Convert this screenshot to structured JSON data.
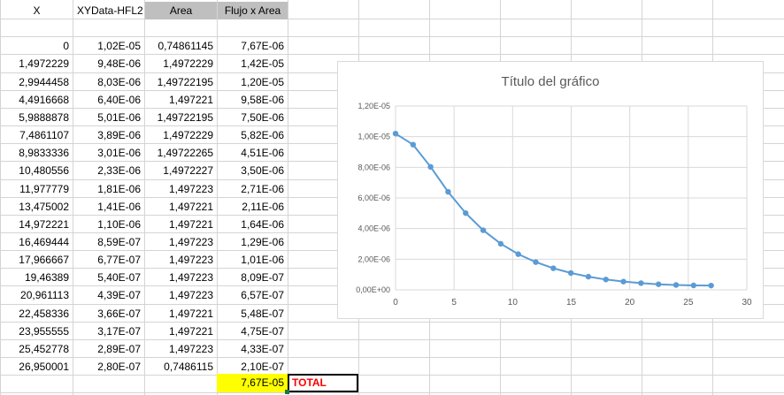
{
  "sheet": {
    "headers": [
      "X",
      "XYData-HFL2",
      "Area",
      "Flujo x Area"
    ],
    "rows": [
      [
        "0",
        "1,02E-05",
        "0,74861145",
        "7,67E-06"
      ],
      [
        "1,4972229",
        "9,48E-06",
        "1,4972229",
        "1,42E-05"
      ],
      [
        "2,9944458",
        "8,03E-06",
        "1,49722195",
        "1,20E-05"
      ],
      [
        "4,4916668",
        "6,40E-06",
        "1,497221",
        "9,58E-06"
      ],
      [
        "5,9888878",
        "5,01E-06",
        "1,49722195",
        "7,50E-06"
      ],
      [
        "7,4861107",
        "3,89E-06",
        "1,4972229",
        "5,82E-06"
      ],
      [
        "8,9833336",
        "3,01E-06",
        "1,49722265",
        "4,51E-06"
      ],
      [
        "10,480556",
        "2,33E-06",
        "1,4972227",
        "3,50E-06"
      ],
      [
        "11,977779",
        "1,81E-06",
        "1,497223",
        "2,71E-06"
      ],
      [
        "13,475002",
        "1,41E-06",
        "1,497221",
        "2,11E-06"
      ],
      [
        "14,972221",
        "1,10E-06",
        "1,497221",
        "1,64E-06"
      ],
      [
        "16,469444",
        "8,59E-07",
        "1,497223",
        "1,29E-06"
      ],
      [
        "17,966667",
        "6,77E-07",
        "1,497223",
        "1,01E-06"
      ],
      [
        "19,46389",
        "5,40E-07",
        "1,497223",
        "8,09E-07"
      ],
      [
        "20,961113",
        "4,39E-07",
        "1,497223",
        "6,57E-07"
      ],
      [
        "22,458336",
        "3,66E-07",
        "1,497221",
        "5,48E-07"
      ],
      [
        "23,955555",
        "3,17E-07",
        "1,497221",
        "4,75E-07"
      ],
      [
        "25,452778",
        "2,89E-07",
        "1,497223",
        "4,33E-07"
      ],
      [
        "26,950001",
        "2,80E-07",
        "0,7486115",
        "2,10E-07"
      ]
    ],
    "total_value": "7,67E-05",
    "total_label": "TOTAL"
  },
  "colors": {
    "gridline": "#d4d4d4",
    "header_highlight": "#bfbfbf",
    "total_highlight": "#ffff00",
    "total_label": "#ff0000",
    "series": "#5b9bd5",
    "chart_grid": "#d9d9d9",
    "axis_text": "#595959"
  },
  "chart_data": {
    "type": "scatter",
    "title": "Título del gráfico",
    "xlabel": "",
    "ylabel": "",
    "xlim": [
      0,
      30
    ],
    "ylim": [
      0,
      1.2e-05
    ],
    "x_ticks": [
      "0",
      "5",
      "10",
      "15",
      "20",
      "25",
      "30"
    ],
    "y_ticks": [
      "0,00E+00",
      "2,00E-06",
      "4,00E-06",
      "6,00E-06",
      "8,00E-06",
      "1,00E-05",
      "1,20E-05"
    ],
    "grid": true,
    "legend": "none",
    "lines": true,
    "markers": true,
    "series": [
      {
        "x": [
          0,
          1.4972229,
          2.9944458,
          4.4916668,
          5.9888878,
          7.4861107,
          8.9833336,
          10.480556,
          11.977779,
          13.475002,
          14.972221,
          16.469444,
          17.966667,
          19.46389,
          20.961113,
          22.458336,
          23.955555,
          25.452778,
          26.950001
        ],
        "y": [
          1.02e-05,
          9.48e-06,
          8.03e-06,
          6.4e-06,
          5.01e-06,
          3.89e-06,
          3.01e-06,
          2.33e-06,
          1.81e-06,
          1.41e-06,
          1.1e-06,
          8.59e-07,
          6.77e-07,
          5.4e-07,
          4.39e-07,
          3.66e-07,
          3.17e-07,
          2.89e-07,
          2.8e-07
        ]
      }
    ]
  }
}
